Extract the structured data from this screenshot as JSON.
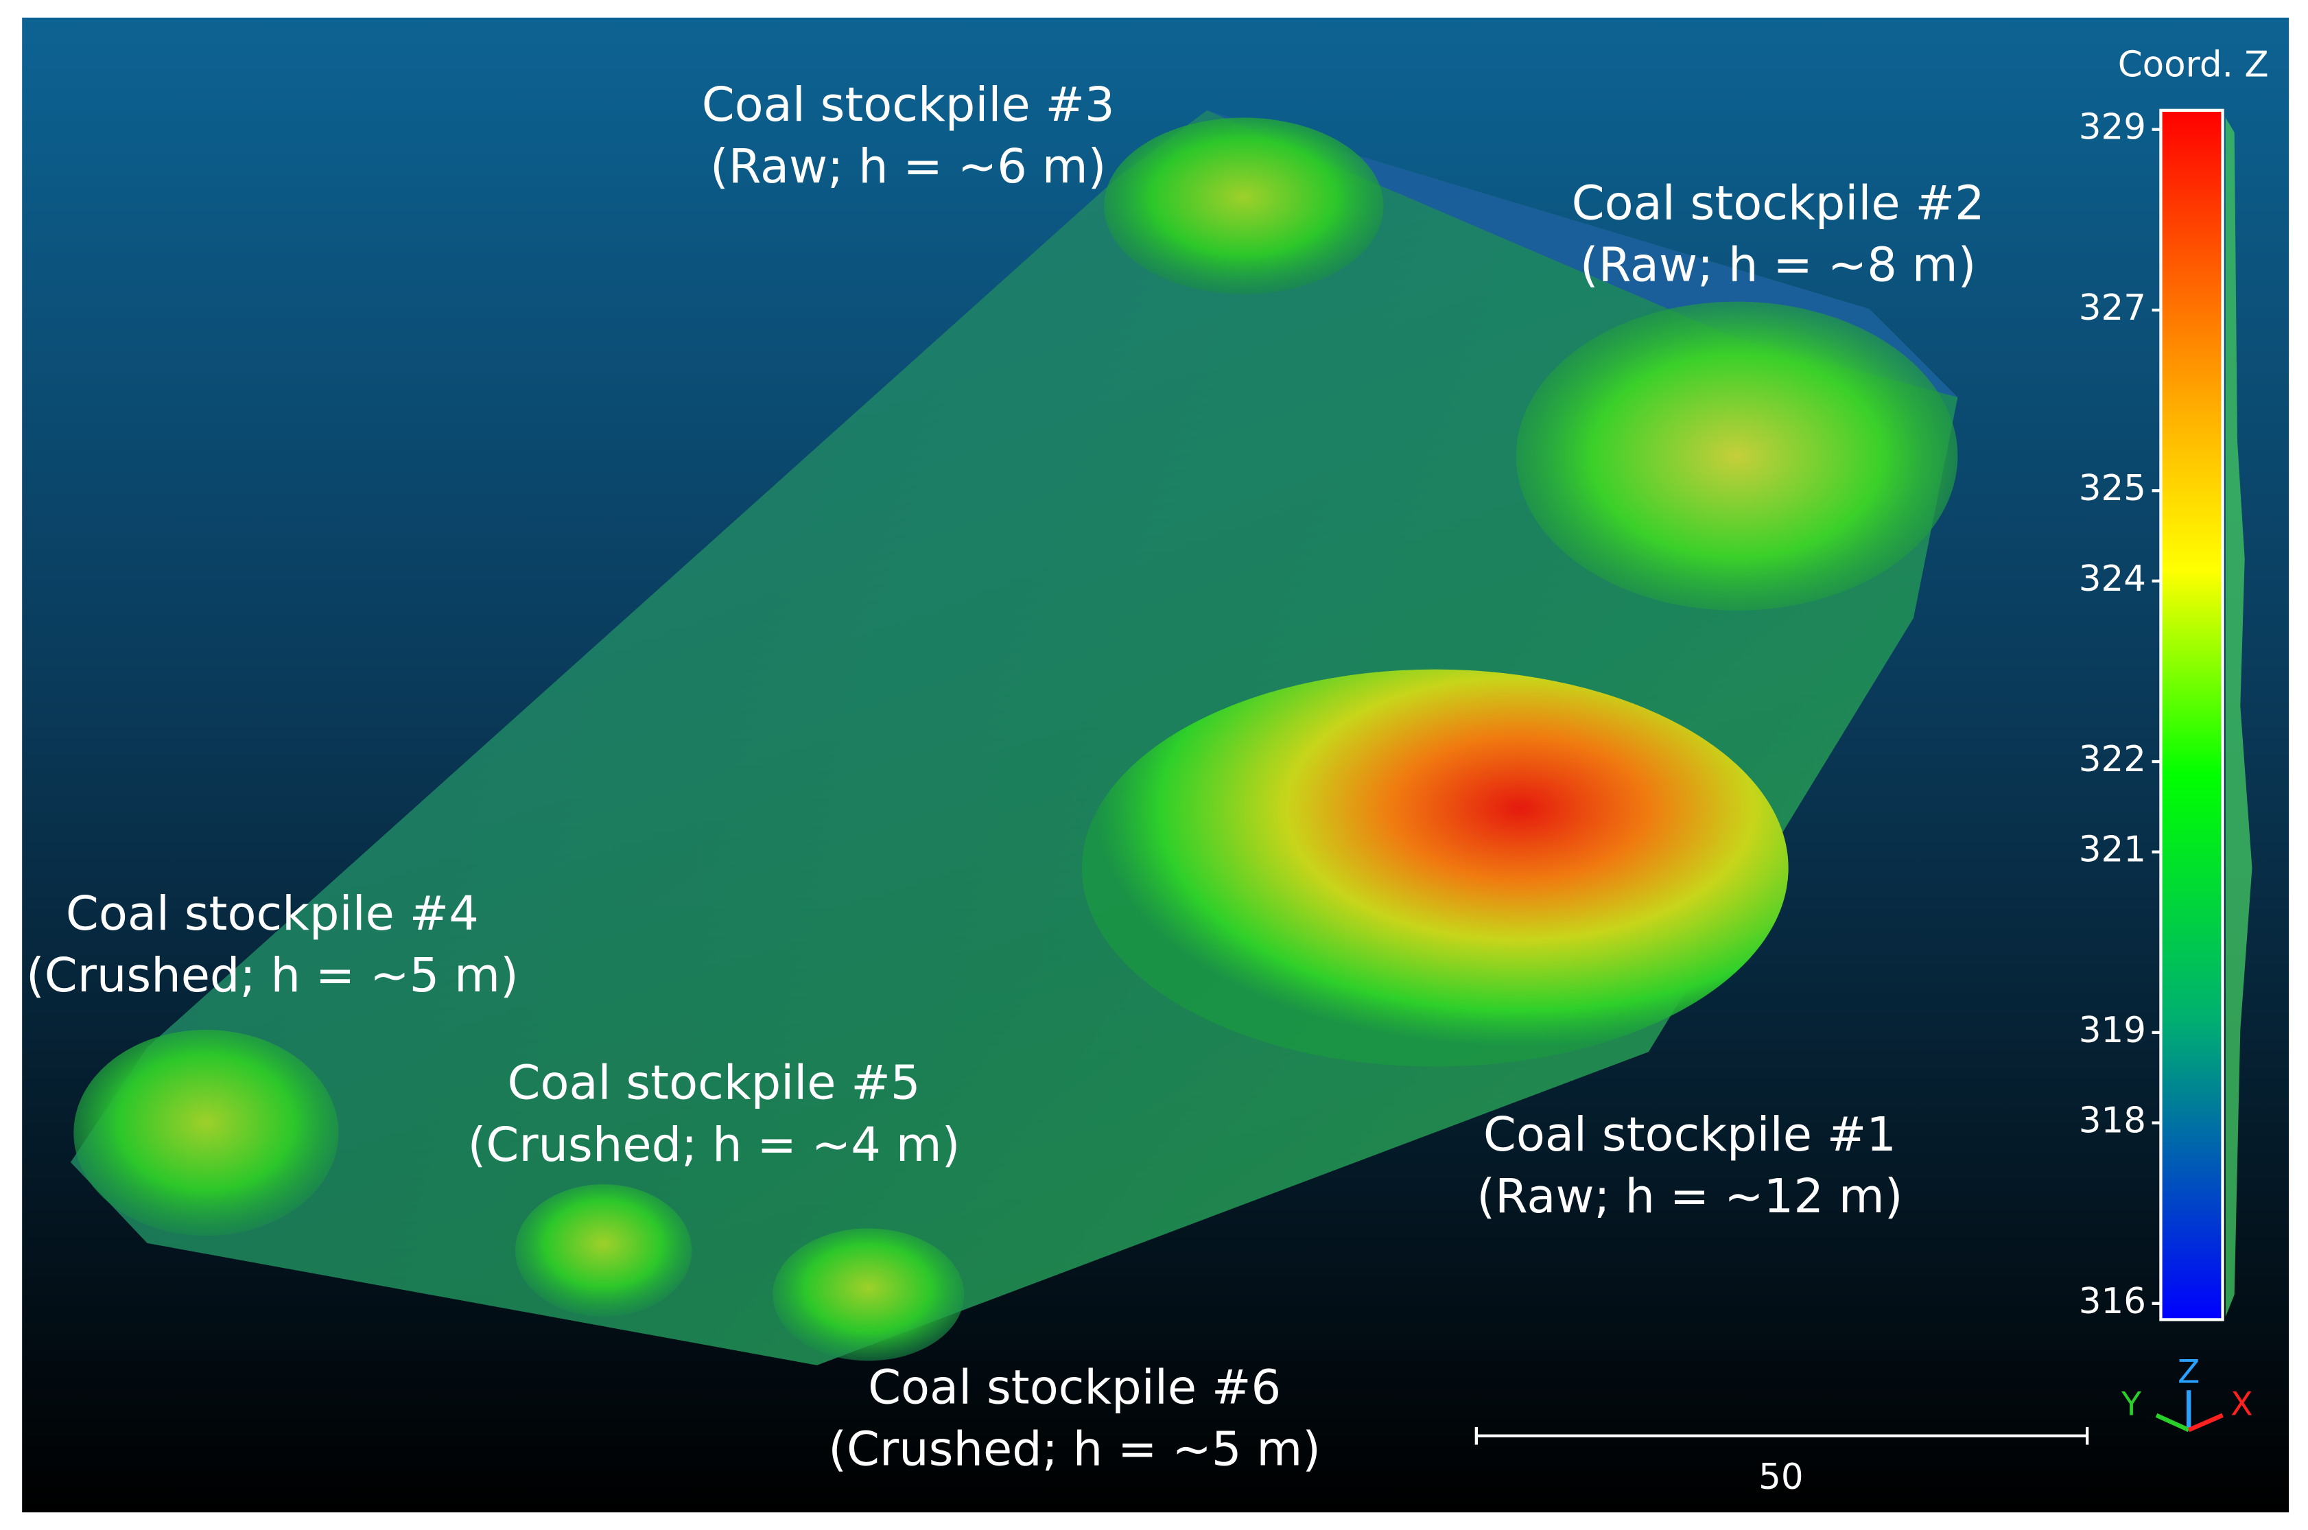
{
  "view": {
    "stockpiles": [
      {
        "name": "Coal stockpile #1",
        "detail": "(Raw; h = ~12 m)"
      },
      {
        "name": "Coal stockpile #2",
        "detail": "(Raw; h = ~8 m)"
      },
      {
        "name": "Coal stockpile #3",
        "detail": "(Raw; h = ~6 m)"
      },
      {
        "name": "Coal stockpile #4",
        "detail": "(Crushed; h = ~5 m)"
      },
      {
        "name": "Coal stockpile #5",
        "detail": "(Crushed; h = ~4 m)"
      },
      {
        "name": "Coal stockpile #6",
        "detail": "(Crushed; h = ~5 m)"
      }
    ],
    "colorbar": {
      "title": "Coord. Z",
      "zlim": [
        316,
        329
      ],
      "ticks": [
        329,
        327,
        325,
        324,
        322,
        321,
        319,
        318,
        316
      ]
    },
    "scale_bar": {
      "label": "50"
    },
    "axes": {
      "z": "Z",
      "y": "Y",
      "x": "X"
    }
  }
}
